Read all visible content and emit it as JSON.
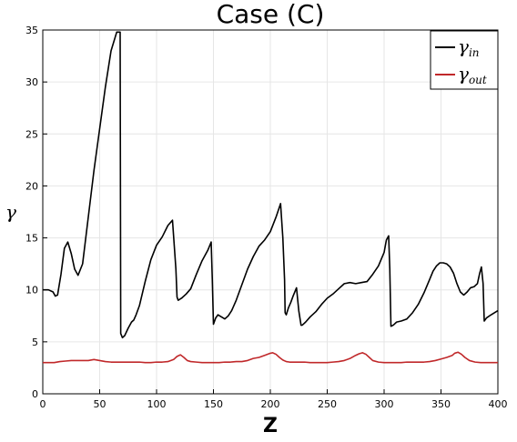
{
  "chart_data": {
    "type": "line",
    "title": "Case (C)",
    "xlabel": "Z",
    "ylabel": "γ",
    "xlim": [
      0,
      400
    ],
    "ylim": [
      0,
      35
    ],
    "xticks": [
      0,
      50,
      100,
      150,
      200,
      250,
      300,
      350,
      400
    ],
    "yticks": [
      0,
      5,
      10,
      15,
      20,
      25,
      30,
      35
    ],
    "grid": true,
    "legend": "top-right",
    "series": [
      {
        "name": "γin",
        "color": "#000000",
        "x": [
          0,
          5,
          9,
          11,
          13,
          16,
          19,
          22,
          25,
          28,
          31,
          35,
          40,
          45,
          50,
          55,
          60,
          65,
          68,
          68.5,
          70,
          72,
          75,
          78,
          80,
          82,
          85,
          90,
          95,
          100,
          105,
          110,
          114,
          117,
          118,
          119,
          122,
          126,
          130,
          135,
          140,
          145,
          148,
          149,
          150,
          152,
          154,
          157,
          160,
          163,
          166,
          170,
          175,
          180,
          185,
          190,
          195,
          200,
          205,
          209,
          211,
          212.5,
          213,
          214,
          216,
          218,
          220,
          223,
          225,
          227,
          228,
          229,
          231,
          235,
          240,
          245,
          250,
          255,
          260,
          265,
          270,
          275,
          280,
          285,
          290,
          295,
          300,
          302,
          304,
          305,
          306,
          308,
          311,
          315,
          320,
          325,
          330,
          335,
          340,
          343,
          346,
          349,
          352,
          355,
          358,
          361,
          364,
          367,
          370,
          373,
          376,
          379,
          382,
          384,
          385.5,
          387,
          388,
          390,
          394,
          400
        ],
        "y": [
          10,
          10,
          9.8,
          9.4,
          9.5,
          11.5,
          14,
          14.6,
          13.5,
          12,
          11.4,
          12.5,
          17,
          21.5,
          25.5,
          29.5,
          33,
          34.8,
          34.8,
          5.8,
          5.4,
          5.6,
          6.3,
          6.9,
          7.1,
          7.6,
          8.5,
          10.8,
          12.9,
          14.3,
          15.1,
          16.2,
          16.7,
          12,
          9.3,
          9,
          9.2,
          9.6,
          10.1,
          11.5,
          12.8,
          13.8,
          14.6,
          11,
          6.7,
          7.3,
          7.6,
          7.4,
          7.2,
          7.5,
          8,
          9,
          10.5,
          12,
          13.2,
          14.2,
          14.8,
          15.6,
          17,
          18.3,
          15,
          11,
          7.8,
          7.6,
          8.3,
          8.8,
          9.4,
          10.2,
          8,
          6.6,
          6.6,
          6.7,
          6.9,
          7.4,
          7.9,
          8.6,
          9.2,
          9.6,
          10.1,
          10.6,
          10.7,
          10.6,
          10.7,
          10.8,
          11.5,
          12.3,
          13.6,
          14.8,
          15.2,
          12,
          6.5,
          6.6,
          6.9,
          7,
          7.2,
          7.8,
          8.6,
          9.7,
          11,
          11.8,
          12.3,
          12.6,
          12.6,
          12.5,
          12.2,
          11.6,
          10.6,
          9.8,
          9.5,
          9.8,
          10.2,
          10.3,
          10.6,
          11.6,
          12.2,
          10.6,
          7,
          7.3,
          7.6,
          8
        ]
      },
      {
        "name": "γout",
        "color": "#c0282a",
        "x": [
          0,
          5,
          10,
          15,
          20,
          25,
          30,
          35,
          40,
          45,
          50,
          55,
          60,
          65,
          70,
          75,
          80,
          85,
          90,
          95,
          100,
          105,
          110,
          115,
          118,
          121,
          124,
          127,
          130,
          135,
          140,
          145,
          150,
          155,
          160,
          165,
          170,
          175,
          180,
          185,
          190,
          195,
          200,
          202,
          205,
          208,
          211,
          214,
          217,
          220,
          225,
          230,
          235,
          240,
          245,
          250,
          255,
          260,
          265,
          270,
          275,
          278,
          281,
          284,
          287,
          290,
          295,
          300,
          305,
          310,
          315,
          320,
          325,
          330,
          335,
          340,
          345,
          350,
          355,
          360,
          362,
          365,
          368,
          371,
          375,
          380,
          385,
          390,
          395,
          400
        ],
        "y": [
          3.0,
          3.0,
          3.0,
          3.1,
          3.15,
          3.2,
          3.2,
          3.2,
          3.2,
          3.3,
          3.2,
          3.1,
          3.05,
          3.05,
          3.05,
          3.05,
          3.05,
          3.05,
          3.0,
          3.0,
          3.05,
          3.05,
          3.1,
          3.3,
          3.6,
          3.75,
          3.5,
          3.2,
          3.1,
          3.05,
          3.0,
          3.0,
          3.0,
          3.0,
          3.05,
          3.05,
          3.1,
          3.1,
          3.2,
          3.4,
          3.5,
          3.7,
          3.9,
          3.95,
          3.8,
          3.5,
          3.25,
          3.1,
          3.05,
          3.05,
          3.05,
          3.05,
          3.0,
          3.0,
          3.0,
          3.0,
          3.05,
          3.1,
          3.2,
          3.4,
          3.7,
          3.85,
          3.95,
          3.8,
          3.5,
          3.2,
          3.05,
          3.0,
          3.0,
          3.0,
          3.0,
          3.05,
          3.05,
          3.05,
          3.05,
          3.1,
          3.2,
          3.35,
          3.5,
          3.7,
          3.9,
          4.0,
          3.8,
          3.5,
          3.2,
          3.05,
          3.0,
          3.0,
          3.0,
          3.0
        ]
      }
    ]
  }
}
